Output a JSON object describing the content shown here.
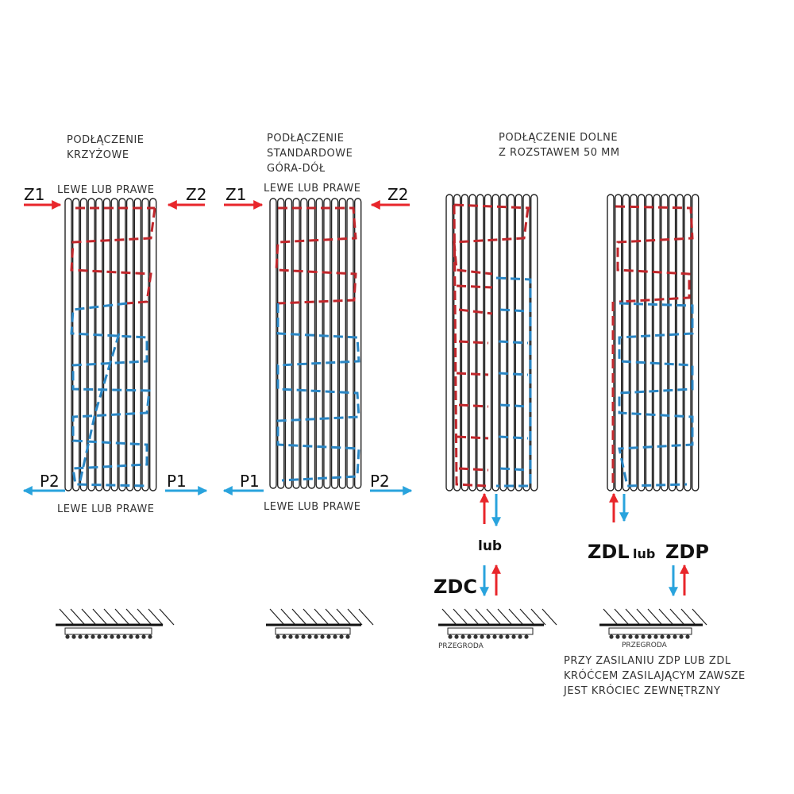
{
  "colors": {
    "supply": "#e8262b",
    "return": "#29a3dd",
    "hot_flow": "#c0262b",
    "cold_flow": "#2a86c4"
  },
  "diagrams": [
    {
      "title_lines": [
        "PODŁĄCZENIE",
        "KRZYŻOWE"
      ],
      "top_label": "LEWE LUB PRAWE",
      "bottom_label": "LEWE LUB PRAWE",
      "top_left": "Z1",
      "top_right": "Z2",
      "bottom_left": "P2",
      "bottom_right": "P1"
    },
    {
      "title_lines": [
        "PODŁĄCZENIE",
        "STANDARDOWE",
        "GÓRA-DÓŁ"
      ],
      "top_label": "LEWE LUB PRAWE",
      "bottom_label": "LEWE LUB PRAWE",
      "top_left": "Z1",
      "top_right": "Z2",
      "bottom_left": "P1",
      "bottom_right": "P2"
    },
    {
      "title_lines": [
        "PODŁĄCZENIE DOLNE",
        "Z ROZSTAWEM  50 MM"
      ]
    }
  ],
  "bottom": {
    "or_label": "lub",
    "zdc": "ZDC",
    "zdl": "ZDL",
    "zdp": "ZDP",
    "or_small": "lub",
    "partition": "PRZEGRODA",
    "note_lines": [
      "PRZY ZASILANIU ZDP LUB ZDL",
      "KRÓĆCEM ZASILAJĄCYM ZAWSZE",
      "JEST KRÓCIEC ZEWNĘTRZNY"
    ]
  }
}
